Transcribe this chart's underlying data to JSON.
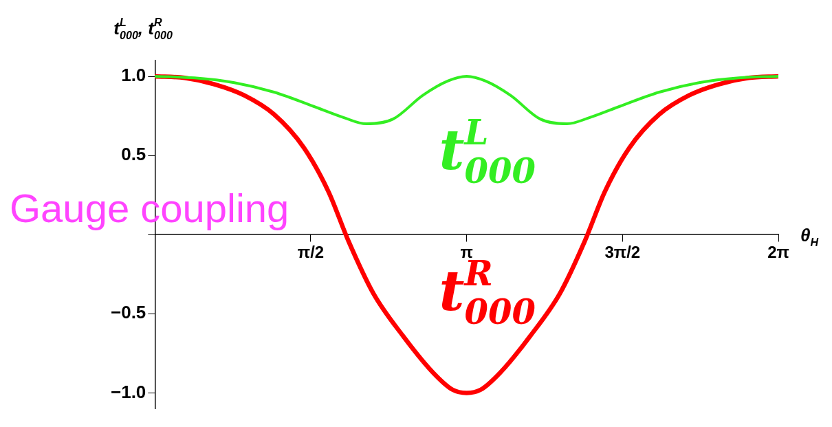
{
  "chart_data": {
    "type": "line",
    "ylabel": "t$^{L}$$_{000}$, t$^{R}$$_{000}$",
    "xlabel": "θ$_{H}$",
    "annotations": [
      "Gauge coupling"
    ],
    "xlim": [
      0,
      6.2832
    ],
    "xticks": [
      {
        "value": 1.5708,
        "label": "π/2"
      },
      {
        "value": 3.1416,
        "label": "π"
      },
      {
        "value": 4.7124,
        "label": "3π/2"
      },
      {
        "value": 6.2832,
        "label": "2π"
      }
    ],
    "ylim": [
      -1.1,
      1.1
    ],
    "yticks": [
      {
        "value": -1,
        "label": "−1.0"
      },
      {
        "value": -0.5,
        "label": "−0.5"
      },
      {
        "value": 0,
        "label": null
      },
      {
        "value": 0.5,
        "label": "0.5"
      },
      {
        "value": 1,
        "label": "1.0"
      }
    ],
    "grid": false,
    "legend": false,
    "marker": "none",
    "line_style": "solid",
    "series": [
      {
        "name": "t$^{L}$$_{000}$",
        "color": "#33ee22",
        "x": [
          0,
          0.4,
          0.8,
          1.2,
          1.6,
          1.9,
          2.13,
          2.4,
          2.7,
          2.95,
          3.1416,
          3.3332,
          3.5832,
          3.8832,
          4.1532,
          4.3832,
          4.6832,
          5.0832,
          5.4832,
          5.8832,
          6.2832
        ],
        "values": [
          1,
          0.99,
          0.96,
          0.9,
          0.81,
          0.74,
          0.7,
          0.73,
          0.88,
          0.97,
          1,
          0.97,
          0.88,
          0.73,
          0.7,
          0.74,
          0.81,
          0.9,
          0.96,
          0.99,
          1
        ]
      },
      {
        "name": "t$^{R}$$_{000}$",
        "color": "#ff0000",
        "x": [
          0,
          0.3,
          0.6,
          0.9,
          1.2,
          1.5,
          1.75,
          1.95,
          2.2,
          2.5,
          2.8,
          3.0,
          3.1416,
          3.2832,
          3.4832,
          3.7832,
          4.0832,
          4.3332,
          4.5332,
          4.7832,
          5.0832,
          5.3832,
          5.6832,
          5.9832,
          6.2832
        ],
        "values": [
          1,
          0.99,
          0.95,
          0.88,
          0.76,
          0.55,
          0.27,
          -0.04,
          -0.37,
          -0.64,
          -0.87,
          -0.98,
          -1,
          -0.98,
          -0.87,
          -0.64,
          -0.37,
          -0.04,
          0.27,
          0.55,
          0.76,
          0.88,
          0.95,
          0.99,
          1
        ]
      }
    ]
  }
}
